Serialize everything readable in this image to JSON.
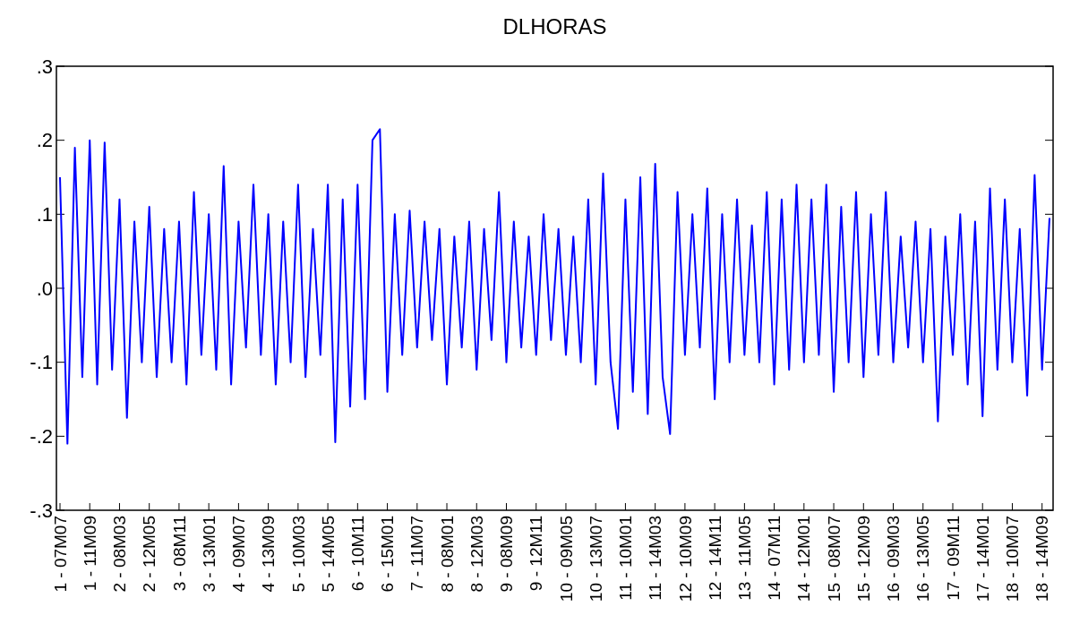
{
  "chart_data": {
    "type": "line",
    "title": "DLHORAS",
    "categories": [
      "1 - 07M07",
      null,
      null,
      null,
      "1 - 11M09",
      null,
      null,
      null,
      "2 - 08M03",
      null,
      null,
      null,
      "2 - 12M05",
      null,
      null,
      null,
      "3 - 08M11",
      null,
      null,
      null,
      "3 - 13M01",
      null,
      null,
      null,
      "4 - 09M07",
      null,
      null,
      null,
      "4 - 13M09",
      null,
      null,
      null,
      "5 - 10M03",
      null,
      null,
      null,
      "5 - 14M05",
      null,
      null,
      null,
      "6 - 10M11",
      null,
      null,
      null,
      "6 - 15M01",
      null,
      null,
      null,
      "7 - 11M07",
      null,
      null,
      null,
      "8 - 08M01",
      null,
      null,
      null,
      "8 - 12M03",
      null,
      null,
      null,
      "9 - 08M09",
      null,
      null,
      null,
      "9 - 12M11",
      null,
      null,
      null,
      "10 - 09M05",
      null,
      null,
      null,
      "10 - 13M07",
      null,
      null,
      null,
      "11 - 10M01",
      null,
      null,
      null,
      "11 - 14M03",
      null,
      null,
      null,
      "12 - 10M09",
      null,
      null,
      null,
      "12 - 14M11",
      null,
      null,
      null,
      "13 - 11M05",
      null,
      null,
      null,
      "14 - 07M11",
      null,
      null,
      null,
      "14 - 12M01",
      null,
      null,
      null,
      "15 - 08M07",
      null,
      null,
      null,
      "15 - 12M09",
      null,
      null,
      null,
      "16 - 09M03",
      null,
      null,
      null,
      "16 - 13M05",
      null,
      null,
      null,
      "17 - 09M11",
      null,
      null,
      null,
      "17 - 14M01",
      null,
      null,
      null,
      "18 - 10M07",
      null,
      null,
      null,
      "18 - 14M09",
      null
    ],
    "series": [
      {
        "color": "#0000ff",
        "values": [
          0.15,
          -0.21,
          0.19,
          -0.12,
          0.2,
          -0.13,
          0.197,
          -0.11,
          0.12,
          -0.175,
          0.09,
          -0.1,
          0.11,
          -0.12,
          0.08,
          -0.1,
          0.09,
          -0.13,
          0.13,
          -0.09,
          0.1,
          -0.11,
          0.165,
          -0.13,
          0.09,
          -0.08,
          0.14,
          -0.09,
          0.1,
          -0.13,
          0.09,
          -0.1,
          0.14,
          -0.12,
          0.08,
          -0.09,
          0.14,
          -0.208,
          0.12,
          -0.16,
          0.14,
          -0.15,
          0.2,
          0.215,
          -0.14,
          0.1,
          -0.09,
          0.105,
          -0.08,
          0.09,
          -0.07,
          0.08,
          -0.13,
          0.07,
          -0.08,
          0.09,
          -0.11,
          0.08,
          -0.07,
          0.13,
          -0.1,
          0.09,
          -0.08,
          0.07,
          -0.09,
          0.1,
          -0.07,
          0.08,
          -0.09,
          0.07,
          -0.1,
          0.12,
          -0.13,
          0.155,
          -0.1,
          -0.19,
          0.12,
          -0.14,
          0.15,
          -0.17,
          0.168,
          -0.12,
          -0.197,
          0.13,
          -0.09,
          0.1,
          -0.08,
          0.135,
          -0.15,
          0.1,
          -0.1,
          0.12,
          -0.09,
          0.085,
          -0.1,
          0.13,
          -0.13,
          0.12,
          -0.11,
          0.14,
          -0.1,
          0.12,
          -0.09,
          0.14,
          -0.14,
          0.11,
          -0.1,
          0.13,
          -0.12,
          0.1,
          -0.09,
          0.13,
          -0.1,
          0.07,
          -0.08,
          0.09,
          -0.1,
          0.08,
          -0.18,
          0.07,
          -0.09,
          0.1,
          -0.13,
          0.09,
          -0.173,
          0.135,
          -0.11,
          0.12,
          -0.1,
          0.08,
          -0.145,
          0.153,
          -0.11,
          0.095
        ]
      }
    ],
    "ylim": [
      -0.3,
      0.3
    ],
    "yticks": [
      {
        "value": -0.3,
        "label": "-.3"
      },
      {
        "value": -0.2,
        "label": "-.2"
      },
      {
        "value": -0.1,
        "label": "-.1"
      },
      {
        "value": 0,
        "label": ".0"
      },
      {
        "value": 0.1,
        "label": ".1"
      },
      {
        "value": 0.2,
        "label": ".2"
      },
      {
        "value": 0.3,
        "label": ".3"
      }
    ],
    "grid": false,
    "line_style": "solid"
  }
}
